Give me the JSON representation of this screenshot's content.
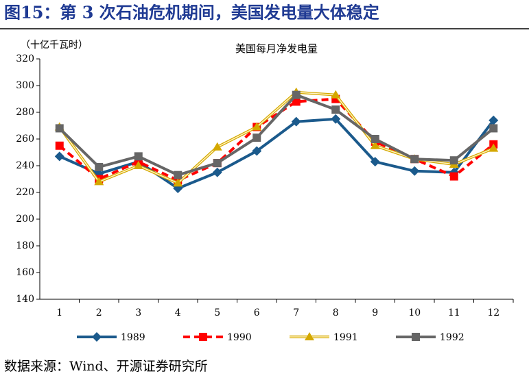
{
  "header": {
    "title": "图15：第 3 次石油危机期间，美国发电量大体稳定"
  },
  "chart_data": {
    "type": "line",
    "title": "美国每月净发电量",
    "y_label": "（十亿千瓦时）",
    "categories": [
      "1",
      "2",
      "3",
      "4",
      "5",
      "6",
      "7",
      "8",
      "9",
      "10",
      "11",
      "12"
    ],
    "series": [
      {
        "name": "1989",
        "color": "#1b5a8c",
        "marker": "diamond",
        "dash": false,
        "values": [
          247,
          234,
          243,
          223,
          235,
          251,
          273,
          275,
          243,
          236,
          235,
          274
        ]
      },
      {
        "name": "1990",
        "color": "#ff0000",
        "marker": "square",
        "dash": true,
        "values": [
          255,
          230,
          243,
          229,
          242,
          269,
          288,
          290,
          258,
          245,
          232,
          256
        ]
      },
      {
        "name": "1991",
        "color": "#d4a800",
        "marker": "triangle",
        "dash": false,
        "double": true,
        "values": [
          269,
          228,
          240,
          227,
          254,
          269,
          295,
          293,
          255,
          245,
          241,
          253
        ]
      },
      {
        "name": "1992",
        "color": "#666666",
        "marker": "square",
        "dash": false,
        "values": [
          268,
          239,
          247,
          233,
          242,
          261,
          293,
          282,
          260,
          245,
          244,
          268
        ]
      }
    ],
    "ylim": [
      140,
      320
    ],
    "yticks": [
      140,
      160,
      180,
      200,
      220,
      240,
      260,
      280,
      300,
      320
    ],
    "grid": false,
    "legend": "bottom"
  },
  "source": "数据来源：Wind、开源证券研究所"
}
